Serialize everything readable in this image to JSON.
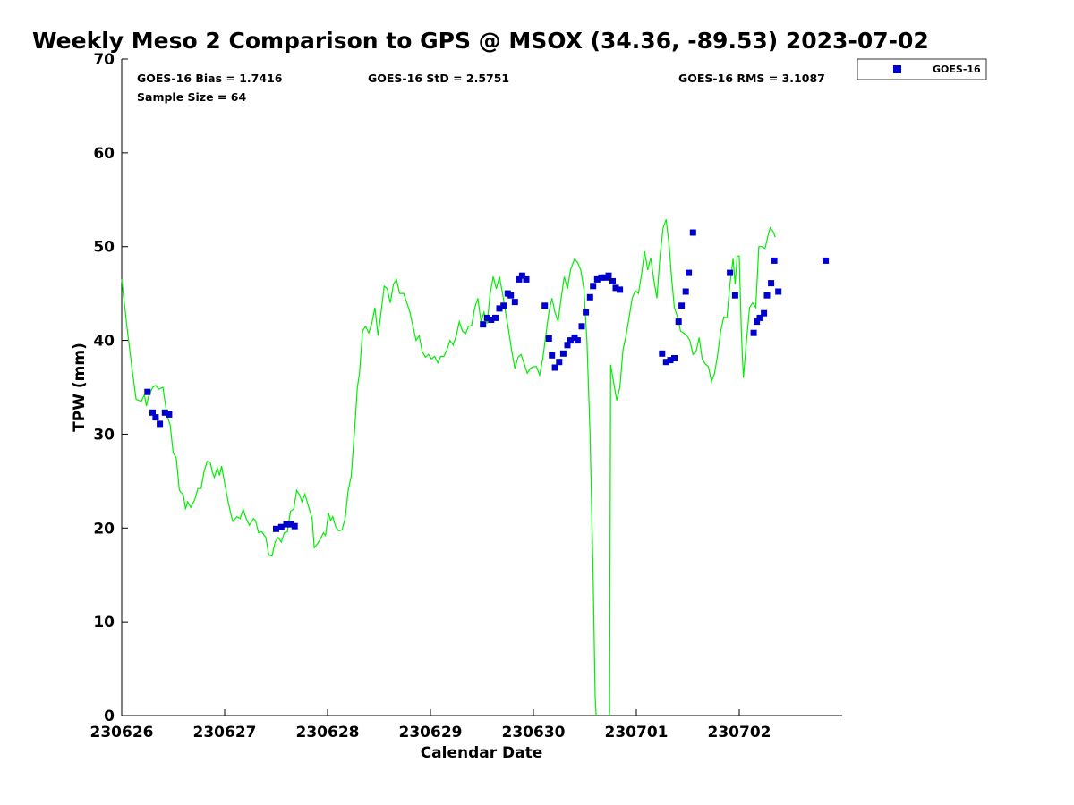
{
  "chart_data": {
    "type": "scatter",
    "title": "Weekly Meso 2 Comparison to GPS @ MSOX (34.36, -89.53) 2023-07-02",
    "xlabel": "Calendar Date",
    "ylabel": "TPW (mm)",
    "x_unit": "days since 230626 00Z",
    "xlim": [
      0,
      7
    ],
    "ylim": [
      0,
      70
    ],
    "x_ticks": [
      {
        "value": 0,
        "label": "230626"
      },
      {
        "value": 1,
        "label": "230627"
      },
      {
        "value": 2,
        "label": "230628"
      },
      {
        "value": 3,
        "label": "230629"
      },
      {
        "value": 4,
        "label": "230630"
      },
      {
        "value": 5,
        "label": "230701"
      },
      {
        "value": 6,
        "label": "230702"
      }
    ],
    "y_ticks": [
      0,
      10,
      20,
      30,
      40,
      50,
      60,
      70
    ],
    "grid": false,
    "legend_position": "top-right",
    "stats": {
      "bias": "GOES-16 Bias = 1.7416",
      "std": "GOES-16 StD = 2.5751",
      "rms": "GOES-16 RMS = 3.1087",
      "sample": "Sample Size = 64"
    },
    "colors": {
      "gps_line": "#00ee00",
      "goes_points": "#0000cc"
    },
    "series": [
      {
        "name": "GPS",
        "kind": "line",
        "color": "#00ee00",
        "segments": [
          [
            [
              0.0,
              46.5
            ],
            [
              0.05,
              41.5
            ],
            [
              0.1,
              37.0
            ],
            [
              0.14,
              33.7
            ],
            [
              0.19,
              33.5
            ],
            [
              0.22,
              34.2
            ],
            [
              0.24,
              33.0
            ],
            [
              0.26,
              34.0
            ],
            [
              0.3,
              35.0
            ],
            [
              0.33,
              35.2
            ],
            [
              0.36,
              34.8
            ],
            [
              0.4,
              35.0
            ],
            [
              0.42,
              33.5
            ],
            [
              0.44,
              32.0
            ],
            [
              0.47,
              31.0
            ],
            [
              0.5,
              28.0
            ],
            [
              0.53,
              27.5
            ],
            [
              0.56,
              24.0
            ],
            [
              0.6,
              23.5
            ],
            [
              0.62,
              22.0
            ],
            [
              0.64,
              22.8
            ],
            [
              0.67,
              22.2
            ],
            [
              0.71,
              23.0
            ],
            [
              0.74,
              24.2
            ],
            [
              0.77,
              24.2
            ],
            [
              0.8,
              26.0
            ],
            [
              0.83,
              27.1
            ],
            [
              0.86,
              27.0
            ],
            [
              0.88,
              26.0
            ],
            [
              0.9,
              25.4
            ],
            [
              0.93,
              26.4
            ],
            [
              0.95,
              25.6
            ],
            [
              0.97,
              26.6
            ],
            [
              1.0,
              24.8
            ],
            [
              1.03,
              23.0
            ],
            [
              1.06,
              21.5
            ],
            [
              1.08,
              20.7
            ],
            [
              1.12,
              21.2
            ],
            [
              1.15,
              21.0
            ],
            [
              1.18,
              22.0
            ],
            [
              1.21,
              21.0
            ],
            [
              1.24,
              20.3
            ],
            [
              1.28,
              21.0
            ],
            [
              1.3,
              20.8
            ],
            [
              1.33,
              19.5
            ],
            [
              1.36,
              19.6
            ],
            [
              1.4,
              19.0
            ],
            [
              1.43,
              17.1
            ],
            [
              1.46,
              17.0
            ],
            [
              1.49,
              18.5
            ],
            [
              1.52,
              19.0
            ],
            [
              1.55,
              18.5
            ],
            [
              1.58,
              19.5
            ],
            [
              1.61,
              19.6
            ],
            [
              1.64,
              21.8
            ],
            [
              1.67,
              22.0
            ],
            [
              1.7,
              24.0
            ],
            [
              1.73,
              23.5
            ],
            [
              1.75,
              22.8
            ],
            [
              1.78,
              23.6
            ],
            [
              1.81,
              22.5
            ],
            [
              1.85,
              21.0
            ],
            [
              1.87,
              17.9
            ],
            [
              1.9,
              18.3
            ],
            [
              1.93,
              18.8
            ],
            [
              1.96,
              19.5
            ],
            [
              1.98,
              19.2
            ],
            [
              2.01,
              21.6
            ],
            [
              2.03,
              20.8
            ],
            [
              2.05,
              21.2
            ],
            [
              2.08,
              20.1
            ],
            [
              2.11,
              19.7
            ],
            [
              2.14,
              19.8
            ],
            [
              2.17,
              21.0
            ],
            [
              2.2,
              24.0
            ],
            [
              2.23,
              25.5
            ],
            [
              2.26,
              30.0
            ],
            [
              2.29,
              35.0
            ],
            [
              2.31,
              36.5
            ],
            [
              2.34,
              41.0
            ],
            [
              2.37,
              41.5
            ],
            [
              2.4,
              40.8
            ],
            [
              2.43,
              41.8
            ],
            [
              2.46,
              43.5
            ],
            [
              2.49,
              40.5
            ],
            [
              2.52,
              43.0
            ],
            [
              2.55,
              45.8
            ],
            [
              2.58,
              45.5
            ],
            [
              2.61,
              44.0
            ],
            [
              2.64,
              46.0
            ],
            [
              2.67,
              46.5
            ],
            [
              2.7,
              45.0
            ],
            [
              2.74,
              45.0
            ],
            [
              2.77,
              44.0
            ],
            [
              2.8,
              43.0
            ],
            [
              2.83,
              41.5
            ],
            [
              2.86,
              40.0
            ],
            [
              2.89,
              40.5
            ],
            [
              2.92,
              38.8
            ],
            [
              2.95,
              38.2
            ],
            [
              2.98,
              38.5
            ],
            [
              3.01,
              38.0
            ],
            [
              3.04,
              38.3
            ],
            [
              3.07,
              37.6
            ],
            [
              3.1,
              38.3
            ],
            [
              3.13,
              38.3
            ],
            [
              3.16,
              39.0
            ],
            [
              3.19,
              40.0
            ],
            [
              3.22,
              39.5
            ],
            [
              3.25,
              40.5
            ],
            [
              3.28,
              42.0
            ],
            [
              3.31,
              41.0
            ],
            [
              3.34,
              40.7
            ],
            [
              3.37,
              41.5
            ],
            [
              3.4,
              41.6
            ],
            [
              3.43,
              43.5
            ],
            [
              3.46,
              44.5
            ],
            [
              3.49,
              42.0
            ],
            [
              3.52,
              43.0
            ],
            [
              3.55,
              41.8
            ],
            [
              3.58,
              45.0
            ],
            [
              3.61,
              46.8
            ],
            [
              3.64,
              45.5
            ],
            [
              3.67,
              46.8
            ],
            [
              3.7,
              45.0
            ],
            [
              3.73,
              43.0
            ],
            [
              3.76,
              41.0
            ],
            [
              3.79,
              38.8
            ],
            [
              3.82,
              37.0
            ],
            [
              3.85,
              38.2
            ],
            [
              3.88,
              38.5
            ],
            [
              3.91,
              37.5
            ],
            [
              3.94,
              36.5
            ],
            [
              3.97,
              37.0
            ],
            [
              4.0,
              37.2
            ],
            [
              4.03,
              37.2
            ],
            [
              4.06,
              36.3
            ],
            [
              4.09,
              38.0
            ],
            [
              4.12,
              40.5
            ],
            [
              4.15,
              43.0
            ],
            [
              4.18,
              44.5
            ],
            [
              4.21,
              43.0
            ],
            [
              4.24,
              42.0
            ],
            [
              4.27,
              44.5
            ],
            [
              4.3,
              46.8
            ],
            [
              4.33,
              45.5
            ],
            [
              4.36,
              47.5
            ],
            [
              4.4,
              48.7
            ],
            [
              4.43,
              48.3
            ],
            [
              4.46,
              47.5
            ],
            [
              4.49,
              45.5
            ],
            [
              4.52,
              40.0
            ],
            [
              4.55,
              30.0
            ],
            [
              4.58,
              15.0
            ],
            [
              4.6,
              2.0
            ],
            [
              4.61,
              0.0
            ]
          ],
          [
            [
              4.74,
              0.0
            ],
            [
              4.75,
              37.4
            ],
            [
              4.78,
              35.5
            ],
            [
              4.81,
              33.6
            ],
            [
              4.84,
              35.0
            ],
            [
              4.87,
              39.0
            ],
            [
              4.9,
              40.5
            ],
            [
              4.93,
              42.5
            ],
            [
              4.96,
              44.5
            ],
            [
              4.99,
              45.3
            ],
            [
              5.02,
              45.0
            ],
            [
              5.05,
              47.0
            ],
            [
              5.08,
              49.5
            ],
            [
              5.11,
              47.5
            ],
            [
              5.14,
              48.8
            ],
            [
              5.17,
              46.5
            ],
            [
              5.2,
              44.5
            ],
            [
              5.23,
              49.0
            ],
            [
              5.26,
              52.0
            ],
            [
              5.29,
              52.9
            ],
            [
              5.32,
              50.0
            ],
            [
              5.34,
              47.0
            ],
            [
              5.37,
              43.5
            ],
            [
              5.4,
              42.5
            ],
            [
              5.43,
              41.0
            ],
            [
              5.46,
              40.8
            ],
            [
              5.49,
              40.5
            ],
            [
              5.52,
              40.0
            ],
            [
              5.55,
              38.5
            ],
            [
              5.58,
              38.8
            ],
            [
              5.61,
              40.3
            ],
            [
              5.64,
              38.0
            ],
            [
              5.67,
              37.5
            ],
            [
              5.7,
              37.2
            ],
            [
              5.73,
              35.6
            ],
            [
              5.76,
              36.5
            ],
            [
              5.79,
              38.5
            ],
            [
              5.82,
              41.0
            ],
            [
              5.85,
              42.5
            ],
            [
              5.88,
              42.4
            ],
            [
              5.91,
              46.0
            ],
            [
              5.94,
              48.7
            ],
            [
              5.96,
              46.0
            ],
            [
              5.98,
              49.0
            ],
            [
              6.0,
              49.0
            ],
            [
              6.02,
              41.0
            ],
            [
              6.04,
              36.0
            ],
            [
              6.07,
              40.0
            ],
            [
              6.1,
              43.5
            ],
            [
              6.13,
              44.0
            ],
            [
              6.16,
              43.5
            ],
            [
              6.19,
              50.0
            ],
            [
              6.22,
              50.0
            ],
            [
              6.25,
              49.8
            ],
            [
              6.28,
              51.2
            ],
            [
              6.3,
              52.0
            ],
            [
              6.33,
              51.6
            ],
            [
              6.35,
              51.0
            ]
          ]
        ]
      },
      {
        "name": "GOES-16",
        "kind": "scatter",
        "color": "#0000cc",
        "points": [
          [
            0.25,
            34.5
          ],
          [
            0.3,
            32.3
          ],
          [
            0.33,
            31.8
          ],
          [
            0.37,
            31.1
          ],
          [
            0.42,
            32.3
          ],
          [
            0.46,
            32.1
          ],
          [
            1.5,
            19.9
          ],
          [
            1.55,
            20.1
          ],
          [
            1.6,
            20.4
          ],
          [
            1.64,
            20.4
          ],
          [
            1.68,
            20.2
          ],
          [
            3.51,
            41.7
          ],
          [
            3.55,
            42.4
          ],
          [
            3.59,
            42.2
          ],
          [
            3.63,
            42.4
          ],
          [
            3.67,
            43.4
          ],
          [
            3.71,
            43.7
          ],
          [
            3.75,
            45.0
          ],
          [
            3.78,
            44.8
          ],
          [
            3.82,
            44.1
          ],
          [
            3.86,
            46.5
          ],
          [
            3.89,
            46.9
          ],
          [
            3.93,
            46.5
          ],
          [
            4.11,
            43.7
          ],
          [
            4.15,
            40.2
          ],
          [
            4.18,
            38.4
          ],
          [
            4.21,
            37.1
          ],
          [
            4.25,
            37.7
          ],
          [
            4.29,
            38.6
          ],
          [
            4.33,
            39.5
          ],
          [
            4.36,
            40.0
          ],
          [
            4.4,
            40.3
          ],
          [
            4.43,
            40.0
          ],
          [
            4.47,
            41.5
          ],
          [
            4.51,
            43.0
          ],
          [
            4.55,
            44.6
          ],
          [
            4.58,
            45.8
          ],
          [
            4.62,
            46.5
          ],
          [
            4.66,
            46.7
          ],
          [
            4.7,
            46.7
          ],
          [
            4.73,
            46.9
          ],
          [
            4.77,
            46.3
          ],
          [
            4.8,
            45.6
          ],
          [
            4.84,
            45.4
          ],
          [
            5.25,
            38.6
          ],
          [
            5.29,
            37.7
          ],
          [
            5.33,
            37.9
          ],
          [
            5.37,
            38.1
          ],
          [
            5.41,
            42.0
          ],
          [
            5.44,
            43.7
          ],
          [
            5.48,
            45.2
          ],
          [
            5.51,
            47.2
          ],
          [
            5.55,
            51.5
          ],
          [
            5.91,
            47.2
          ],
          [
            5.96,
            44.8
          ],
          [
            6.14,
            40.8
          ],
          [
            6.17,
            42.0
          ],
          [
            6.2,
            42.4
          ],
          [
            6.24,
            42.9
          ],
          [
            6.27,
            44.8
          ],
          [
            6.31,
            46.1
          ],
          [
            6.34,
            48.5
          ],
          [
            6.38,
            45.2
          ],
          [
            6.84,
            48.5
          ]
        ]
      }
    ]
  }
}
